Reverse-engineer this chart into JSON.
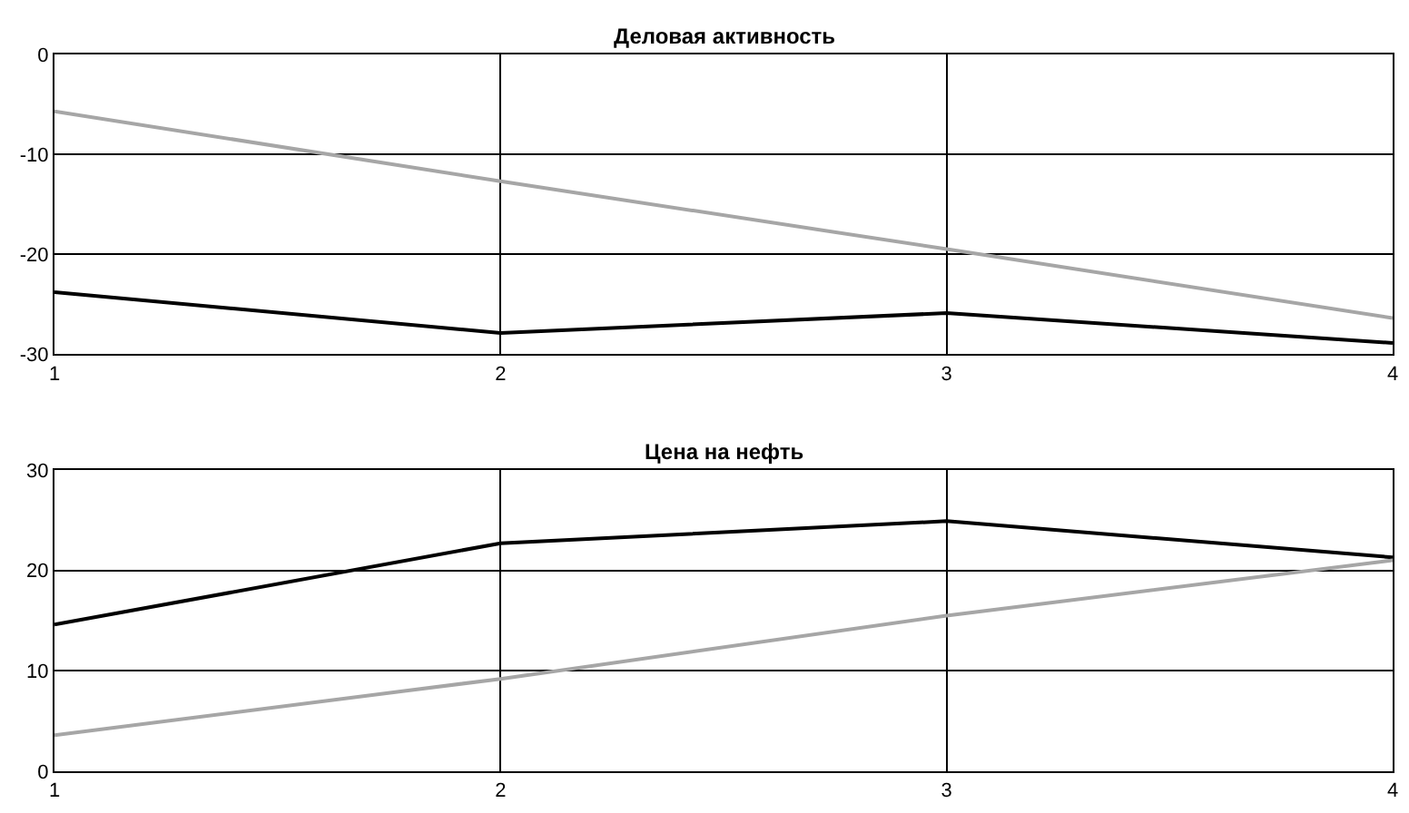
{
  "chart_data": [
    {
      "type": "line",
      "title": "Деловая активность",
      "x": [
        1,
        2,
        3,
        4
      ],
      "xlim": [
        1,
        4
      ],
      "xticks": [
        1,
        2,
        3,
        4
      ],
      "ylim": [
        -30,
        0
      ],
      "yticks": [
        -30,
        -20,
        -10,
        0
      ],
      "grid": true,
      "series": [
        {
          "color": "#000000",
          "values": [
            -23.8,
            -27.9,
            -25.9,
            -28.9
          ]
        },
        {
          "color": "#a6a6a6",
          "values": [
            -5.7,
            -12.7,
            -19.5,
            -26.4
          ]
        }
      ]
    },
    {
      "type": "line",
      "title": "Цена на нефть",
      "x": [
        1,
        2,
        3,
        4
      ],
      "xlim": [
        1,
        4
      ],
      "xticks": [
        1,
        2,
        3,
        4
      ],
      "ylim": [
        0,
        30
      ],
      "yticks": [
        0,
        10,
        20,
        30
      ],
      "grid": true,
      "series": [
        {
          "color": "#000000",
          "values": [
            14.6,
            22.7,
            24.9,
            21.3
          ]
        },
        {
          "color": "#a6a6a6",
          "values": [
            3.6,
            9.2,
            15.5,
            21.0
          ]
        }
      ]
    }
  ]
}
